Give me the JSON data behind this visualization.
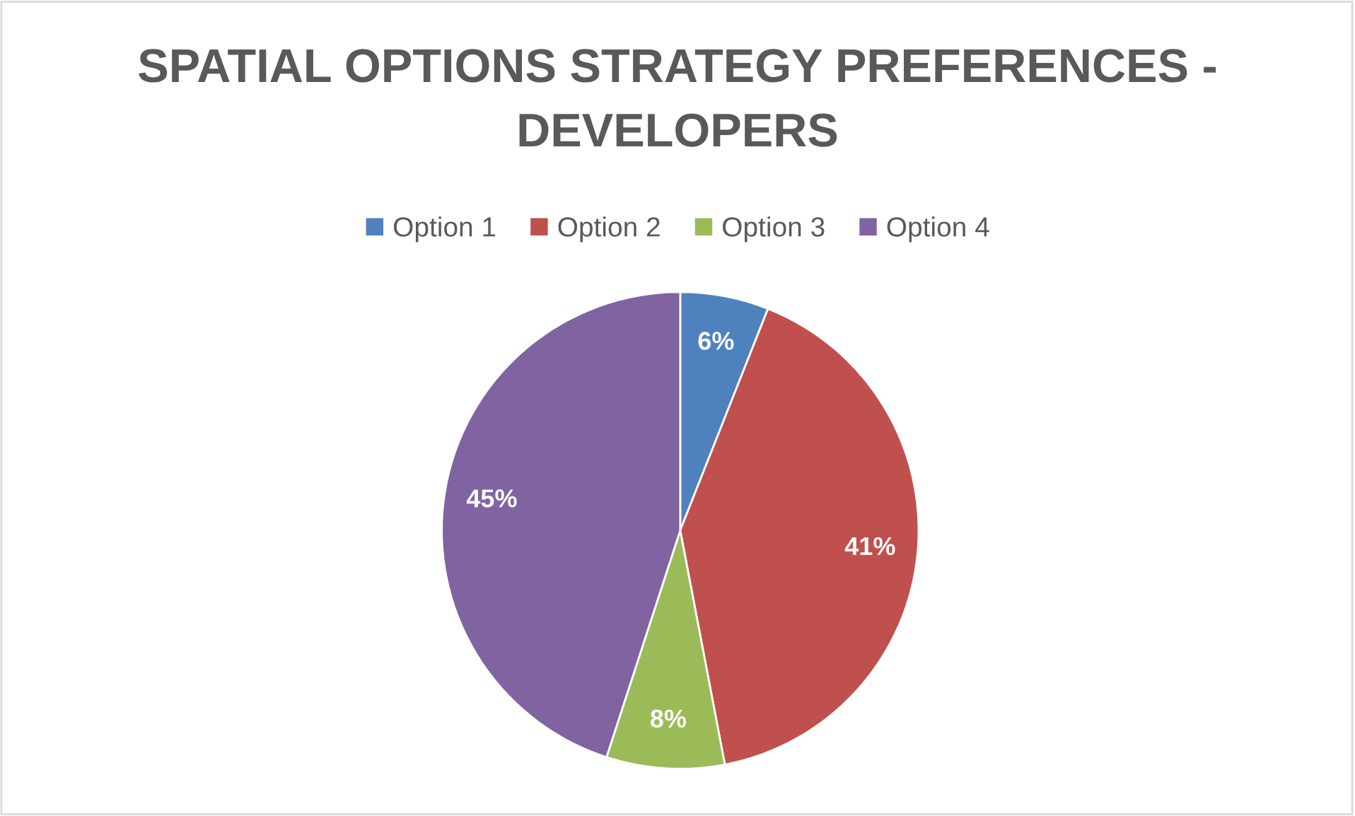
{
  "chart_data": {
    "type": "pie",
    "title": "SPATIAL OPTIONS STRATEGY PREFERENCES - DEVELOPERS",
    "categories": [
      "Option 1",
      "Option 2",
      "Option 3",
      "Option 4"
    ],
    "values": [
      6,
      41,
      8,
      45
    ],
    "colors": [
      "#4f81bd",
      "#c0504d",
      "#9bbb59",
      "#8064a2"
    ],
    "value_labels": [
      "6%",
      "41%",
      "8%",
      "45%"
    ],
    "legend": "top"
  }
}
